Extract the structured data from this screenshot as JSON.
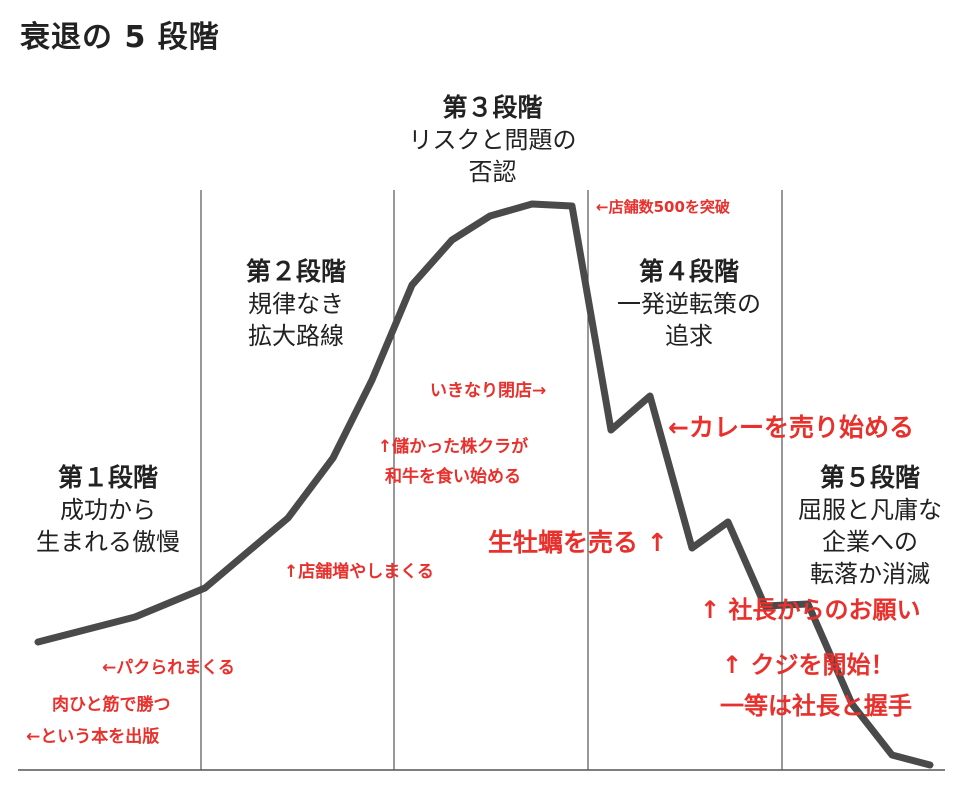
{
  "title": "衰退の 5 段階",
  "stages": [
    {
      "head": "第１段階",
      "desc1": "成功から",
      "desc2": "生まれる傲慢",
      "desc3": ""
    },
    {
      "head": "第２段階",
      "desc1": "規律なき",
      "desc2": "拡大路線",
      "desc3": ""
    },
    {
      "head": "第３段階",
      "desc1": "リスクと問題の",
      "desc2": "否認",
      "desc3": ""
    },
    {
      "head": "第４段階",
      "desc1": "一発逆転策の",
      "desc2": "追求",
      "desc3": ""
    },
    {
      "head": "第５段階",
      "desc1": "屈服と凡庸な",
      "desc2": "企業への",
      "desc3": "転落か消滅"
    }
  ],
  "annotations": {
    "pakurare": "←パクられまくる",
    "book1": "肉ひと筋で勝つ",
    "book2": "←という本を出版",
    "tenpo_zou": "↑店舗増やしまくる",
    "kabu1": "↑儲かった株クラが",
    "kabu2": "和牛を食い始める",
    "heiten": "いきなり閉店→",
    "toppa": "←店舗数500を突破",
    "curry": "←カレーを売り始める",
    "kaki": "生牡蠣を売る ↑",
    "onegai": "↑ 社長からのお願い",
    "kuji1": "↑ クジを開始！",
    "kuji2": "一等は社長と握手"
  },
  "colors": {
    "curve": "#4a4a4a",
    "annotation": "#e8302c",
    "divider": "#555555"
  }
}
